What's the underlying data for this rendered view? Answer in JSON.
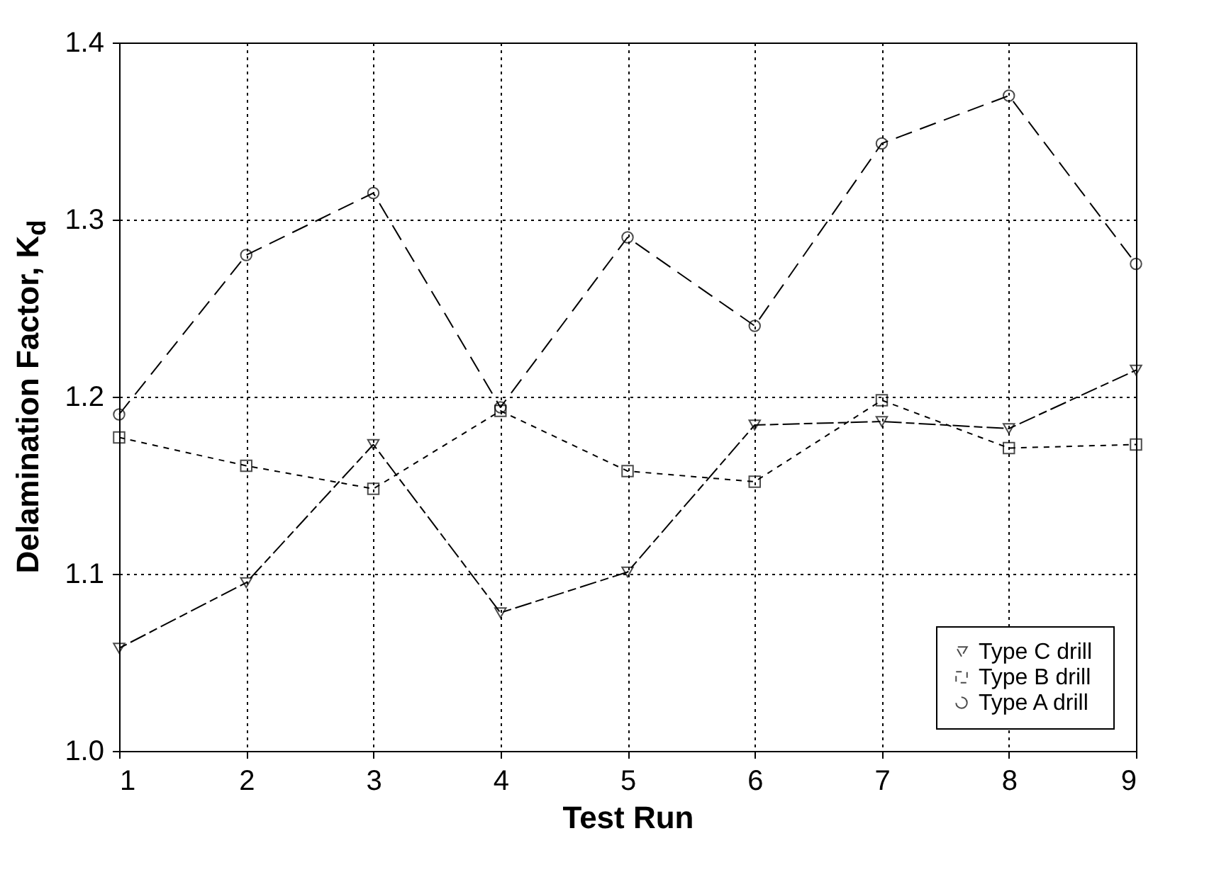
{
  "chart_data": {
    "type": "line",
    "xlabel": "Test Run",
    "ylabel": "Delamination Factor, K$_{d}$",
    "x": [
      1,
      2,
      3,
      4,
      5,
      6,
      7,
      8,
      9
    ],
    "series": [
      {
        "name": "Type C  drill",
        "color": "#000000",
        "marker": "triangle",
        "values": [
          1.058,
          1.095,
          1.173,
          1.078,
          1.101,
          1.184,
          1.186,
          1.182,
          1.215
        ]
      },
      {
        "name": "Type B drill",
        "color": "#000000",
        "marker": "square",
        "values": [
          1.177,
          1.161,
          1.148,
          1.192,
          1.158,
          1.152,
          1.198,
          1.171,
          1.173
        ]
      },
      {
        "name": "Type A drill",
        "color": "#000000",
        "marker": "circle",
        "values": [
          1.19,
          1.28,
          1.315,
          1.194,
          1.29,
          1.24,
          1.343,
          1.37,
          1.275
        ]
      }
    ],
    "xlim": [
      1,
      9
    ],
    "xticks": [
      1,
      2,
      3,
      4,
      5,
      6,
      7,
      8,
      9
    ],
    "ylim": [
      1.0,
      1.4
    ],
    "yticks": [
      {
        "value": 1.0,
        "label": "1.0"
      },
      1.1,
      1.2,
      1.3,
      {
        "value": 1.4,
        "label": "1.4"
      }
    ],
    "grid": true,
    "legend": "bottom right",
    "line_style": "dashed"
  }
}
